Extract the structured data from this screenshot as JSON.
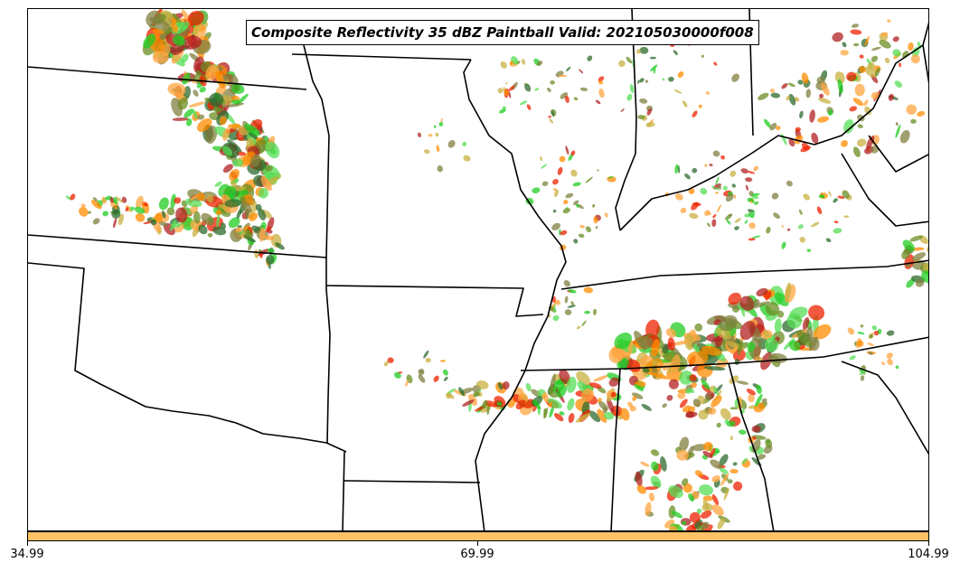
{
  "title": "Composite Reflectivity 35 dBZ Paintball Valid: 202105030000f008",
  "colorbar": {
    "color": "#ffc266",
    "ticks": [
      "34.99",
      "69.99",
      "104.99"
    ]
  },
  "paint_colors": [
    "#ff8c00",
    "#ee2200",
    "#b22222",
    "#22cc22",
    "#55dd55",
    "#6b8e23",
    "#808040",
    "#ffa640",
    "#2e6b2e",
    "#c8b040"
  ],
  "boundary_color": "#000000"
}
